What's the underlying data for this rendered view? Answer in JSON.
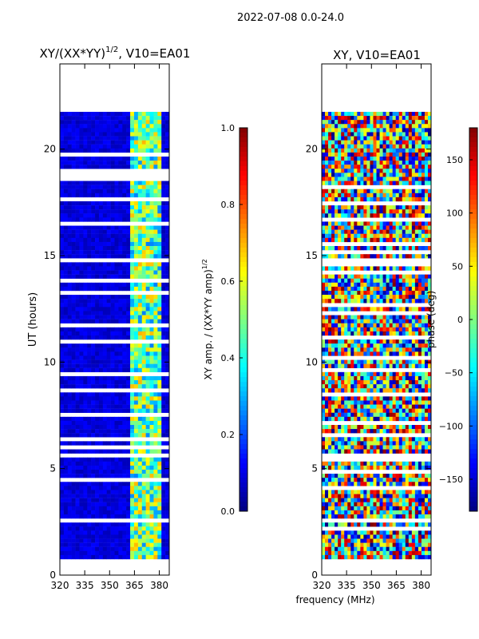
{
  "suptitle": "2022-07-08 0.0-24.0",
  "shared_xlabel": "frequency (MHz)",
  "chart_data": [
    {
      "type": "heatmap",
      "title_main": "XY/(XX*YY)",
      "title_sup": "1/2",
      "title_tail": ", V10=EA01",
      "ylabel": "UT (hours)",
      "xlim": [
        320,
        386
      ],
      "ylim": [
        0,
        24
      ],
      "xticks": [
        320,
        335,
        350,
        365,
        380
      ],
      "yticks": [
        0,
        5,
        10,
        15,
        20
      ],
      "data_hours": [
        0.75,
        21.75
      ],
      "bright_band_mhz": [
        363,
        382
      ],
      "colormap": "jet",
      "colorbar": {
        "label_main": "XY amp. / (XX*YY amp)",
        "label_sup": "1/2",
        "range": [
          0.0,
          1.0
        ],
        "ticks": [
          "0.0",
          "0.2",
          "0.4",
          "0.6",
          "0.8",
          "1.0"
        ]
      }
    },
    {
      "type": "heatmap",
      "title_main": "XY, V10=EA01",
      "title_sup": "",
      "title_tail": "",
      "ylabel": "",
      "xlim": [
        320,
        386
      ],
      "ylim": [
        0,
        24
      ],
      "xticks": [
        320,
        335,
        350,
        365,
        380
      ],
      "yticks": [
        0,
        5,
        10,
        15,
        20
      ],
      "data_hours": [
        0.75,
        21.75
      ],
      "colormap": "jet",
      "colorbar": {
        "label_main": "phase (deg)",
        "label_sup": "",
        "range": [
          -180,
          180
        ],
        "ticks": [
          "−150",
          "−100",
          "−50",
          "0",
          "50",
          "100",
          "150"
        ],
        "tick_values": [
          -150,
          -100,
          -50,
          0,
          50,
          100,
          150
        ]
      }
    }
  ]
}
